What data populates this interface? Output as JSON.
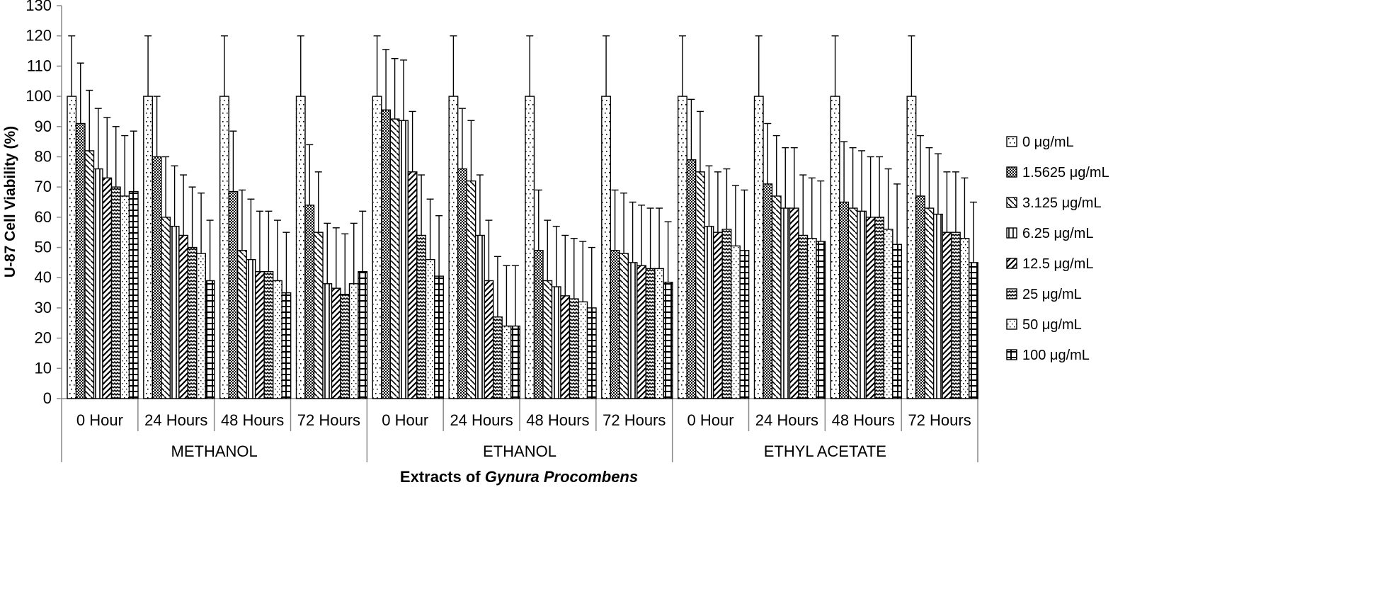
{
  "chart_data": {
    "type": "bar",
    "ylabel": "U-87 Cell Viability (%)",
    "xlabel": "Extracts of",
    "xlabel_italic": "Gynura Procombens",
    "ylim": [
      0,
      130
    ],
    "yticks": [
      0,
      10,
      20,
      30,
      40,
      50,
      60,
      70,
      80,
      90,
      100,
      110,
      120,
      130
    ],
    "grid": false,
    "legend_position": "right",
    "groups": [
      {
        "name": "METHANOL",
        "categories": [
          "0 Hour",
          "24 Hours",
          "48 Hours",
          "72 Hours"
        ]
      },
      {
        "name": "ETHANOL",
        "categories": [
          "0 Hour",
          "24 Hours",
          "48 Hours",
          "72 Hours"
        ]
      },
      {
        "name": "ETHYL ACETATE",
        "categories": [
          "0 Hour",
          "24 Hours",
          "48 Hours",
          "72 Hours"
        ]
      }
    ],
    "series": [
      {
        "name": "0 μg/mL",
        "pattern": "dots-sparse",
        "values": [
          100,
          100,
          100,
          100,
          100,
          100,
          100,
          100,
          100,
          100,
          100,
          100
        ],
        "errors": [
          20,
          20,
          20,
          20,
          20,
          20,
          20,
          20,
          20,
          20,
          20,
          20
        ]
      },
      {
        "name": "1.5625 μg/mL",
        "pattern": "crosshatch",
        "values": [
          91,
          80,
          68.5,
          64,
          95.5,
          76,
          49,
          49,
          79,
          71,
          65,
          67
        ],
        "errors": [
          20,
          20,
          20,
          20,
          20,
          20,
          20,
          20,
          20,
          20,
          20,
          20
        ]
      },
      {
        "name": "3.125 μg/mL",
        "pattern": "diag-dashes",
        "values": [
          82,
          60,
          49,
          55,
          92.5,
          72,
          39,
          48,
          75,
          67,
          63,
          63
        ],
        "errors": [
          20,
          20,
          20,
          20,
          20,
          20,
          20,
          20,
          20,
          20,
          20,
          20
        ]
      },
      {
        "name": "6.25 μg/mL",
        "pattern": "vertical",
        "values": [
          76,
          57,
          46,
          38,
          92,
          54,
          37,
          45,
          57,
          63,
          62,
          61
        ],
        "errors": [
          20,
          20,
          20,
          20,
          20,
          20,
          20,
          20,
          20,
          20,
          20,
          20
        ]
      },
      {
        "name": "12.5 μg/mL",
        "pattern": "diag-thick",
        "values": [
          73,
          54,
          42,
          36.5,
          75,
          39,
          34,
          44,
          55,
          63,
          60,
          55
        ],
        "errors": [
          20,
          20,
          20,
          20,
          20,
          20,
          20,
          20,
          20,
          20,
          20,
          20
        ]
      },
      {
        "name": "25 μg/mL",
        "pattern": "zigzag",
        "values": [
          70,
          50,
          42,
          34.5,
          54,
          27,
          33,
          43,
          56,
          54,
          60,
          55
        ],
        "errors": [
          20,
          20,
          20,
          20,
          20,
          20,
          20,
          20,
          20,
          20,
          20,
          20
        ]
      },
      {
        "name": "50 μg/mL",
        "pattern": "dots-dense",
        "values": [
          67,
          48,
          39,
          38,
          46,
          24,
          32,
          43,
          50.5,
          53,
          56,
          53
        ],
        "errors": [
          20,
          20,
          20,
          20,
          20,
          20,
          20,
          20,
          20,
          20,
          20,
          20
        ]
      },
      {
        "name": "100 μg/mL",
        "pattern": "grid",
        "values": [
          68.5,
          39,
          35,
          42,
          40.5,
          24,
          30,
          38.5,
          49,
          52,
          51,
          45
        ],
        "errors": [
          20,
          20,
          20,
          20,
          20,
          20,
          20,
          20,
          20,
          20,
          20,
          20
        ]
      }
    ]
  }
}
